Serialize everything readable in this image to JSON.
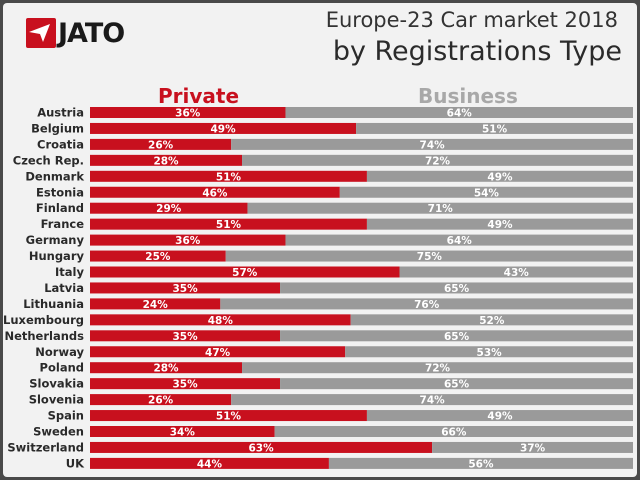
{
  "header": {
    "logo_text": "JATO",
    "title_line1": "Europe-23 Car market  2018",
    "title_line2": "by Registrations Type"
  },
  "colors": {
    "private": "#c8101e",
    "business": "#9a9a9a"
  },
  "chart_data": {
    "type": "bar",
    "orientation": "horizontal",
    "stacked": true,
    "title": "Europe-23 Car market  2018 by Registrations Type",
    "unit": "%",
    "xlim": [
      0,
      100
    ],
    "categories": [
      "Austria",
      "Belgium",
      "Croatia",
      "Czech Rep.",
      "Denmark",
      "Estonia",
      "Finland",
      "France",
      "Germany",
      "Hungary",
      "Italy",
      "Latvia",
      "Lithuania",
      "Luxembourg",
      "Netherlands",
      "Norway",
      "Poland",
      "Slovakia",
      "Slovenia",
      "Spain",
      "Sweden",
      "Switzerland",
      "UK"
    ],
    "series": [
      {
        "name": "Private",
        "values": [
          36,
          49,
          26,
          28,
          51,
          46,
          29,
          51,
          36,
          25,
          57,
          35,
          24,
          48,
          35,
          47,
          28,
          35,
          26,
          51,
          34,
          63,
          44
        ]
      },
      {
        "name": "Business",
        "values": [
          64,
          51,
          74,
          72,
          49,
          54,
          71,
          49,
          64,
          75,
          43,
          65,
          76,
          52,
          65,
          53,
          72,
          65,
          74,
          49,
          66,
          37,
          56
        ]
      }
    ],
    "legend": "top",
    "grid": false
  }
}
